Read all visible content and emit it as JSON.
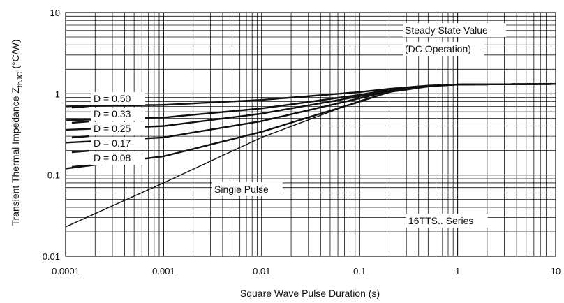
{
  "chart_data": {
    "type": "line",
    "x_scale": "log",
    "y_scale": "log",
    "xlim": [
      0.0001,
      10
    ],
    "ylim": [
      0.01,
      10
    ],
    "grid": true,
    "xlabel": "Square Wave Pulse Duration (s)",
    "ylabel": {
      "main": "Transient Thermal Impedance Z",
      "subscript": "thJC",
      "unit": "(°C/W)"
    },
    "x_ticks": [
      {
        "value": 0.0001,
        "label": "0.0001"
      },
      {
        "value": 0.001,
        "label": "0.001"
      },
      {
        "value": 0.01,
        "label": "0.01"
      },
      {
        "value": 0.1,
        "label": "0.1"
      },
      {
        "value": 1,
        "label": "1"
      },
      {
        "value": 10,
        "label": "10"
      }
    ],
    "y_ticks": [
      {
        "value": 0.01,
        "label": "0.01"
      },
      {
        "value": 0.1,
        "label": "0.1"
      },
      {
        "value": 1,
        "label": "1"
      },
      {
        "value": 10,
        "label": "10"
      }
    ],
    "annotations": [
      "Steady State Value",
      "(DC Operation)",
      "Single Pulse",
      "16TTS.. Series"
    ],
    "legend_position": "left",
    "series": [
      {
        "name": "D = 0.50",
        "x": [
          0.0001,
          0.001,
          0.01,
          0.1,
          0.2,
          0.5,
          1,
          10
        ],
        "y": [
          0.7,
          0.73,
          0.84,
          1.05,
          1.15,
          1.26,
          1.3,
          1.32
        ]
      },
      {
        "name": "D = 0.33",
        "x": [
          0.0001,
          0.001,
          0.01,
          0.1,
          0.2,
          0.5,
          1,
          10
        ],
        "y": [
          0.47,
          0.51,
          0.66,
          0.97,
          1.12,
          1.25,
          1.3,
          1.32
        ]
      },
      {
        "name": "D = 0.25",
        "x": [
          0.0001,
          0.001,
          0.01,
          0.1,
          0.2,
          0.5,
          1,
          10
        ],
        "y": [
          0.36,
          0.4,
          0.57,
          0.93,
          1.1,
          1.25,
          1.3,
          1.32
        ]
      },
      {
        "name": "D = 0.17",
        "x": [
          0.0001,
          0.001,
          0.01,
          0.1,
          0.2,
          0.5,
          1,
          10
        ],
        "y": [
          0.25,
          0.29,
          0.46,
          0.88,
          1.08,
          1.24,
          1.3,
          1.32
        ]
      },
      {
        "name": "D = 0.08",
        "x": [
          0.0001,
          0.001,
          0.01,
          0.1,
          0.2,
          0.5,
          1,
          10
        ],
        "y": [
          0.12,
          0.17,
          0.34,
          0.8,
          1.05,
          1.23,
          1.3,
          1.32
        ]
      },
      {
        "name": "Single Pulse",
        "x": [
          0.0001,
          0.001,
          0.01,
          0.1,
          0.2,
          0.5,
          1,
          10
        ],
        "y": [
          0.023,
          0.08,
          0.29,
          0.82,
          1.05,
          1.23,
          1.3,
          1.32
        ]
      }
    ]
  }
}
